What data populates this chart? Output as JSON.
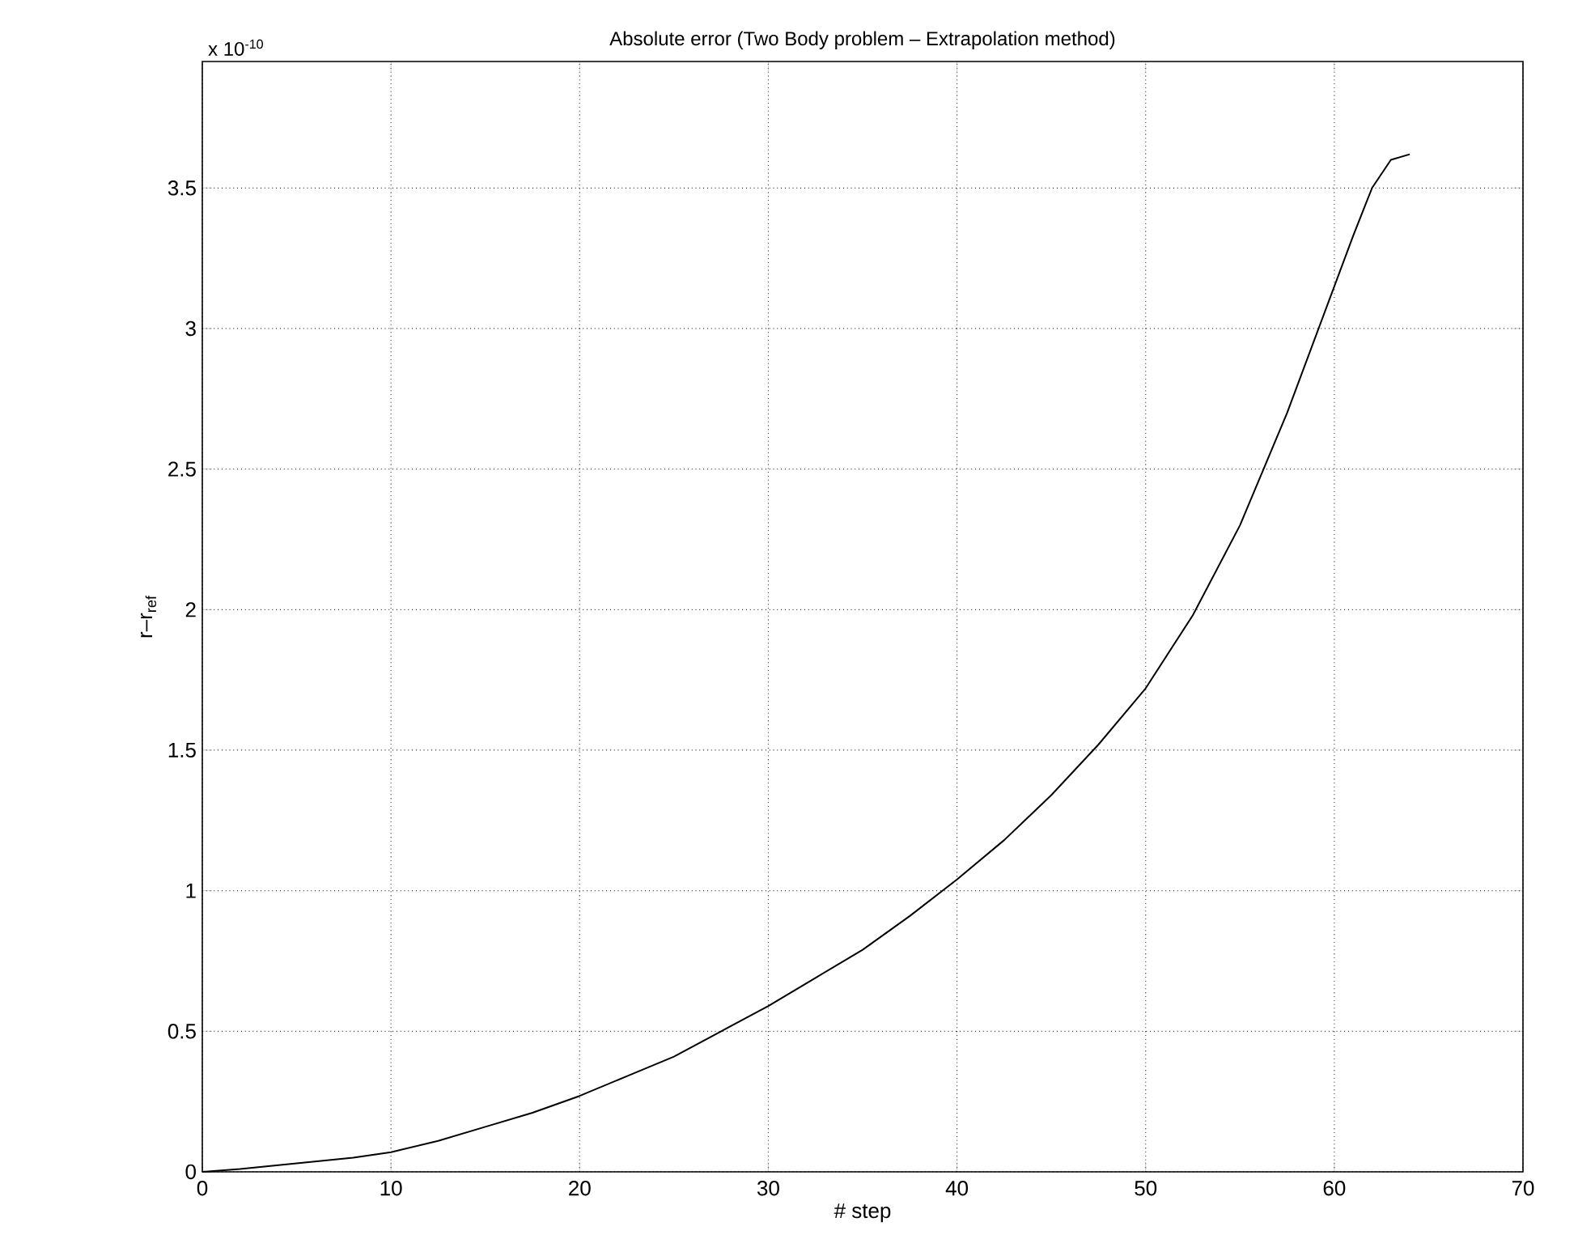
{
  "chart_data": {
    "type": "line",
    "title": "Absolute error (Two Body problem – Extrapolation method)",
    "xlabel": "# step",
    "ylabel": "r–r$_{ref}$",
    "annotations": [
      "x 10$^{-10}$"
    ],
    "x": [
      0,
      2,
      5,
      8,
      10,
      12.5,
      15,
      17.5,
      20,
      22.5,
      25,
      27.5,
      30,
      32.5,
      35,
      37.5,
      40,
      42.5,
      45,
      47.5,
      50,
      52.5,
      55,
      57.5,
      59,
      60,
      61,
      62,
      63,
      64
    ],
    "series": [
      {
        "color": "#000000",
        "values": [
          0,
          0.01,
          0.03,
          0.05,
          0.07,
          0.11,
          0.16,
          0.21,
          0.27,
          0.34,
          0.41,
          0.5,
          0.59,
          0.69,
          0.79,
          0.91,
          1.04,
          1.18,
          1.34,
          1.52,
          1.72,
          1.98,
          2.3,
          2.7,
          2.97,
          3.15,
          3.33,
          3.5,
          3.6,
          3.62
        ]
      }
    ],
    "xlim": [
      0,
      70
    ],
    "ylim": [
      0,
      3.95
    ],
    "xticks": [
      0,
      10,
      20,
      30,
      40,
      50,
      60,
      70
    ],
    "yticks": [
      0,
      0.5,
      1,
      1.5,
      2,
      2.5,
      3,
      3.5
    ],
    "grid": true,
    "marker": "none",
    "line_style": "solid"
  }
}
